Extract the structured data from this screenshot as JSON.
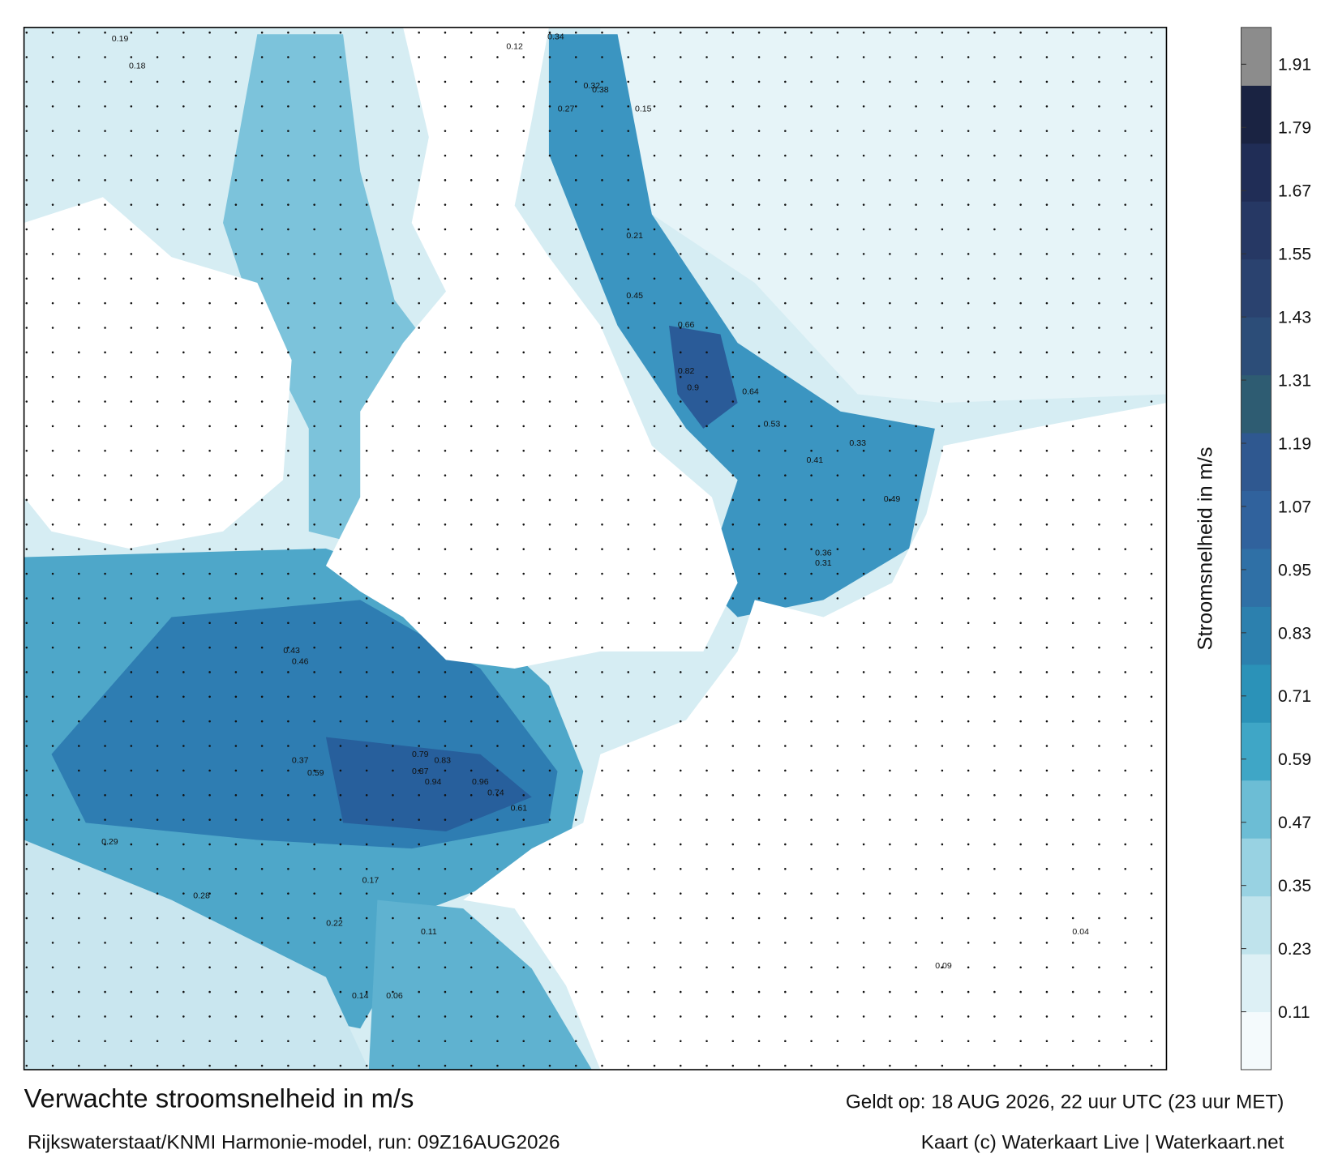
{
  "title": "Verwachte stroomsnelheid in m/s",
  "valid_time": "Geldt op: 18 AUG 2026, 22 uur UTC (23 uur MET)",
  "model": "Rijkswaterstaat/KNMI Harmonie-model, run: 09Z16AUG2026",
  "credit": "Kaart (c) Waterkaart Live | Waterkaart.net",
  "colorbar": {
    "label": "Stroomsnelheid in m/s",
    "lim": [
      0,
      1.98
    ],
    "ticks": [
      0.11,
      0.23,
      0.35,
      0.47,
      0.59,
      0.71,
      0.83,
      0.95,
      1.07,
      1.19,
      1.31,
      1.43,
      1.55,
      1.67,
      1.79,
      1.91
    ],
    "colors": [
      "#f4fafc",
      "#ddf0f5",
      "#bfe3ec",
      "#98d2e2",
      "#6cbdd5",
      "#3fa6c6",
      "#2b92b8",
      "#2c80ae",
      "#2f70a6",
      "#30629d",
      "#2f5890",
      "#2e5c72",
      "#2c4d78",
      "#2a426f",
      "#263864",
      "#202d56",
      "#1a2342",
      "#8c8c8c"
    ]
  },
  "labels": [
    0.19,
    0.18,
    0.34,
    0.38,
    0.32,
    0.27,
    0.15,
    0.12,
    0.21,
    0.45,
    0.66,
    0.82,
    0.9,
    0.64,
    0.53,
    0.41,
    0.49,
    0.36,
    0.31,
    0.33,
    0.43,
    0.46,
    0.79,
    0.83,
    0.96,
    0.94,
    0.87,
    0.74,
    0.61,
    0.59,
    0.37,
    0.29,
    0.28,
    0.22,
    0.17,
    0.14,
    0.11,
    0.06,
    0.04,
    0.09
  ]
}
